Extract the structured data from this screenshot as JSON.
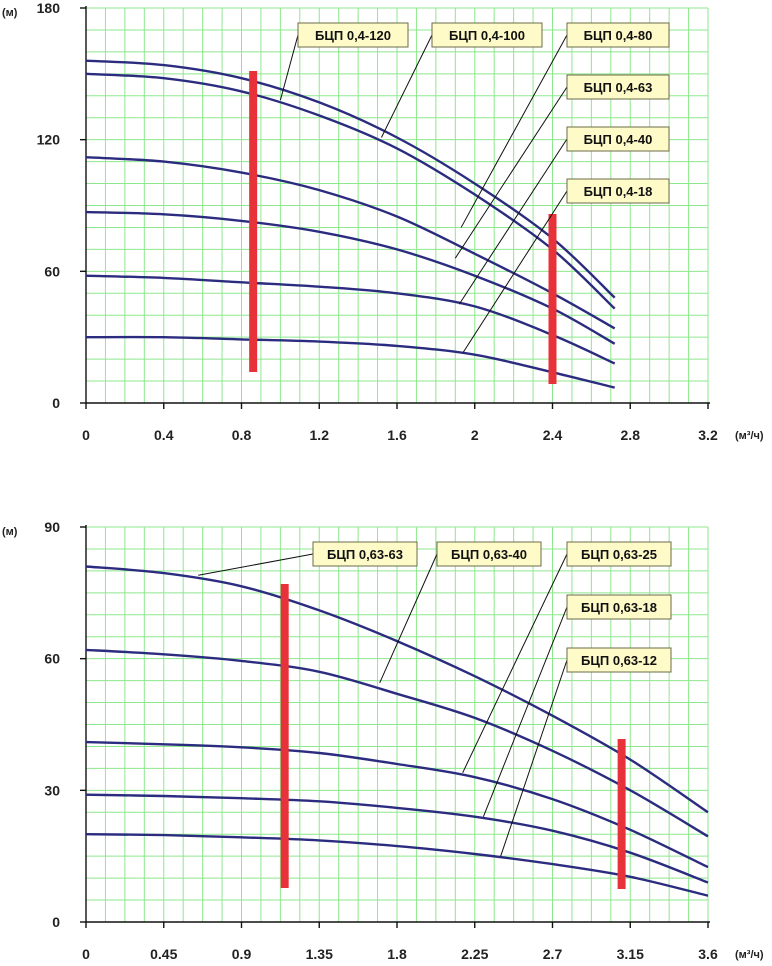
{
  "colors": {
    "grid": "#8ee88e",
    "curve": "#2b2c7f",
    "band": "#e8323a",
    "label_bg": "#fffbc8",
    "label_border": "#6b6b4a",
    "axis": "#111111",
    "leader": "#111111"
  },
  "chart_data": [
    {
      "type": "line",
      "title": "",
      "xlabel": "(м³/ч)",
      "ylabel": "(м)",
      "xlim": [
        0,
        3.2
      ],
      "ylim": [
        0,
        180
      ],
      "x_ticks": [
        "0",
        "0.4",
        "0.8",
        "1.2",
        "1.6",
        "2",
        "2.4",
        "2.8",
        "3.2"
      ],
      "y_ticks": [
        "0",
        "60",
        "120",
        "180"
      ],
      "grid": true,
      "series": [
        {
          "name": "БЦП 0,4-120",
          "x": [
            0,
            0.4,
            0.8,
            1.2,
            1.6,
            2.0,
            2.4,
            2.72
          ],
          "y": [
            156,
            154,
            148,
            137,
            121,
            100,
            75,
            48
          ],
          "label_on": [
            1.0,
            138
          ]
        },
        {
          "name": "БЦП 0,4-100",
          "x": [
            0,
            0.4,
            0.8,
            1.2,
            1.6,
            2.0,
            2.4,
            2.72
          ],
          "y": [
            150,
            148,
            142,
            131,
            116,
            95,
            70,
            43
          ],
          "label_on": [
            1.52,
            121
          ]
        },
        {
          "name": "БЦП 0,4-80",
          "x": [
            0,
            0.4,
            0.8,
            1.2,
            1.6,
            2.0,
            2.4,
            2.72
          ],
          "y": [
            112,
            110,
            105,
            97,
            85,
            68,
            50,
            34
          ],
          "label_on": [
            1.93,
            80
          ]
        },
        {
          "name": "БЦП 0,4-63",
          "x": [
            0,
            0.4,
            0.8,
            1.2,
            1.6,
            2.0,
            2.4,
            2.72
          ],
          "y": [
            87,
            86,
            83,
            78,
            70,
            58,
            43,
            27
          ],
          "label_on": [
            1.9,
            66
          ]
        },
        {
          "name": "БЦП 0,4-40",
          "x": [
            0,
            0.4,
            0.8,
            1.2,
            1.6,
            2.0,
            2.4,
            2.72
          ],
          "y": [
            58,
            57,
            55,
            53,
            50,
            44,
            31,
            18
          ],
          "label_on": [
            1.92,
            45
          ]
        },
        {
          "name": "БЦП 0,4-18",
          "x": [
            0,
            0.4,
            0.8,
            1.2,
            1.6,
            2.0,
            2.4,
            2.72
          ],
          "y": [
            30,
            30,
            29,
            28,
            26,
            22,
            14,
            7
          ],
          "label_on": [
            1.94,
            23
          ]
        }
      ],
      "operating_range": {
        "q_min": 0.86,
        "q_max": 2.4
      }
    },
    {
      "type": "line",
      "title": "",
      "xlabel": "(м³/ч)",
      "ylabel": "(м)",
      "xlim": [
        0,
        3.6
      ],
      "ylim": [
        0,
        90
      ],
      "x_ticks": [
        "0",
        "0.45",
        "0.9",
        "1.35",
        "1.8",
        "2.25",
        "2.7",
        "3.15",
        "3.6"
      ],
      "y_ticks": [
        "0",
        "30",
        "60",
        "90"
      ],
      "grid": true,
      "series": [
        {
          "name": "БЦП 0,63-63",
          "x": [
            0,
            0.45,
            0.9,
            1.35,
            1.8,
            2.25,
            2.7,
            3.15,
            3.6
          ],
          "y": [
            81,
            79.5,
            76.5,
            71,
            64,
            56,
            47,
            37,
            25
          ],
          "label_on": [
            0.65,
            79
          ]
        },
        {
          "name": "БЦП 0,63-40",
          "x": [
            0,
            0.45,
            0.9,
            1.35,
            1.8,
            2.25,
            2.7,
            3.15,
            3.6
          ],
          "y": [
            62,
            61,
            59.5,
            57,
            52,
            46.5,
            39,
            30,
            19.5
          ],
          "label_on": [
            1.7,
            54.5
          ]
        },
        {
          "name": "БЦП 0,63-25",
          "x": [
            0,
            0.45,
            0.9,
            1.35,
            1.8,
            2.25,
            2.7,
            3.15,
            3.6
          ],
          "y": [
            41,
            40.5,
            39.8,
            38.5,
            36,
            33,
            28,
            21,
            12.5
          ],
          "label_on": [
            2.18,
            34
          ]
        },
        {
          "name": "БЦП 0,63-18",
          "x": [
            0,
            0.45,
            0.9,
            1.35,
            1.8,
            2.25,
            2.7,
            3.15,
            3.6
          ],
          "y": [
            29,
            28.7,
            28.2,
            27.5,
            26,
            24,
            20.8,
            15.8,
            9
          ],
          "label_on": [
            2.3,
            24
          ]
        },
        {
          "name": "БЦП 0,63-12",
          "x": [
            0,
            0.45,
            0.9,
            1.35,
            1.8,
            2.25,
            2.7,
            3.15,
            3.6
          ],
          "y": [
            20,
            19.8,
            19.3,
            18.6,
            17.3,
            15.5,
            13.2,
            10.3,
            6
          ],
          "label_on": [
            2.4,
            15
          ]
        }
      ],
      "operating_range": {
        "q_min": 1.15,
        "q_max": 3.1
      }
    }
  ]
}
